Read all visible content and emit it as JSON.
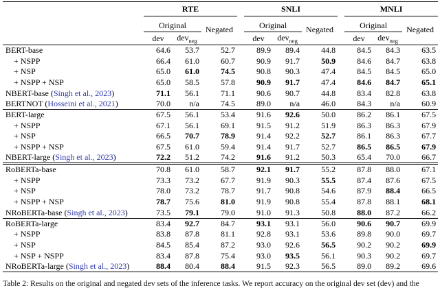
{
  "table": {
    "link_color": "#2d37aa",
    "col_groups": [
      {
        "name": "RTE"
      },
      {
        "name": "SNLI"
      },
      {
        "name": "MNLI"
      }
    ],
    "header": {
      "original": "Original",
      "negated": "Negated",
      "dev": "dev",
      "neg_sub": "neg"
    },
    "sections": [
      {
        "rows": [
          {
            "label": "BERT-base",
            "indent": false,
            "values": [
              "64.6",
              "53.7",
              "52.7",
              "89.9",
              "89.4",
              "44.8",
              "84.5",
              "84.3",
              "63.5"
            ],
            "bold": []
          },
          {
            "label": "+ NSPP",
            "indent": true,
            "values": [
              "66.4",
              "61.0",
              "60.7",
              "90.9",
              "91.7",
              "50.9",
              "84.6",
              "84.7",
              "63.8"
            ],
            "bold": [
              5
            ]
          },
          {
            "label": "+ NSP",
            "indent": true,
            "values": [
              "65.0",
              "61.0",
              "74.5",
              "90.8",
              "90.3",
              "47.4",
              "84.5",
              "84.5",
              "65.0"
            ],
            "bold": [
              1,
              2
            ]
          },
          {
            "label": "+ NSPP + NSP",
            "indent": true,
            "values": [
              "65.0",
              "58.5",
              "57.8",
              "90.9",
              "91.7",
              "47.4",
              "84.6",
              "84.7",
              "65.1"
            ],
            "bold": [
              3,
              4,
              6,
              7,
              8
            ]
          },
          {
            "label": "NBERT-base",
            "cite": "Singh et al., 2023",
            "indent": false,
            "values": [
              "71.1",
              "56.1",
              "71.1",
              "90.6",
              "90.7",
              "44.8",
              "83.4",
              "82.8",
              "63.8"
            ],
            "bold": [
              0
            ]
          },
          {
            "label": "BERTNOT",
            "cite": "Hosseini et al., 2021",
            "indent": false,
            "values": [
              "70.0",
              "n/a",
              "74.5",
              "89.0",
              "n/a",
              "46.0",
              "84.3",
              "n/a",
              "60.9"
            ],
            "bold": []
          }
        ]
      },
      {
        "rule": "single",
        "rows": [
          {
            "label": "BERT-large",
            "indent": false,
            "values": [
              "67.5",
              "56.1",
              "53.4",
              "91.6",
              "92.6",
              "50.0",
              "86.2",
              "86.1",
              "67.5"
            ],
            "bold": [
              4
            ]
          },
          {
            "label": "+ NSPP",
            "indent": true,
            "values": [
              "67.1",
              "56.1",
              "69.1",
              "91.5",
              "91.2",
              "51.9",
              "86.3",
              "86.3",
              "67.9"
            ],
            "bold": []
          },
          {
            "label": "+ NSP",
            "indent": true,
            "values": [
              "66.5",
              "70.7",
              "78.9",
              "91.4",
              "92.2",
              "52.7",
              "86.1",
              "86.3",
              "67.7"
            ],
            "bold": [
              1,
              2,
              5
            ]
          },
          {
            "label": "+ NSPP + NSP",
            "indent": true,
            "values": [
              "67.5",
              "61.0",
              "59.4",
              "91.4",
              "91.7",
              "52.7",
              "86.5",
              "86.5",
              "67.9"
            ],
            "bold": [
              6,
              7,
              8
            ]
          },
          {
            "label": "NBERT-large",
            "cite": "Singh et al., 2023",
            "indent": false,
            "values": [
              "72.2",
              "51.2",
              "74.2",
              "91.6",
              "91.2",
              "50.3",
              "65.4",
              "70.0",
              "66.7"
            ],
            "bold": [
              0,
              3
            ]
          }
        ]
      },
      {
        "rule": "double",
        "rows": [
          {
            "label": "RoBERTa-base",
            "indent": false,
            "values": [
              "70.8",
              "61.0",
              "58.7",
              "92.1",
              "91.7",
              "55.2",
              "87.8",
              "88.0",
              "67.1"
            ],
            "bold": [
              3,
              4
            ]
          },
          {
            "label": "+ NSPP",
            "indent": true,
            "values": [
              "73.3",
              "73.2",
              "67.7",
              "91.9",
              "90.3",
              "55.5",
              "87.4",
              "87.6",
              "67.5"
            ],
            "bold": [
              5
            ]
          },
          {
            "label": "+ NSP",
            "indent": true,
            "values": [
              "78.0",
              "73.2",
              "78.7",
              "91.7",
              "90.8",
              "54.6",
              "87.9",
              "88.4",
              "66.5"
            ],
            "bold": [
              7
            ]
          },
          {
            "label": "+ NSPP + NSP",
            "indent": true,
            "values": [
              "78.7",
              "75.6",
              "81.0",
              "91.9",
              "90.8",
              "55.4",
              "87.8",
              "88.1",
              "68.1"
            ],
            "bold": [
              0,
              2,
              8
            ]
          },
          {
            "label": "NRoBERTa-base",
            "cite": "Singh et al., 2023",
            "indent": false,
            "values": [
              "73.5",
              "79.1",
              "79.0",
              "91.0",
              "91.3",
              "50.8",
              "88.0",
              "87.2",
              "66.2"
            ],
            "bold": [
              1,
              6
            ]
          }
        ]
      },
      {
        "rule": "single",
        "rows": [
          {
            "label": "RoBERTa-large",
            "indent": false,
            "values": [
              "83.4",
              "92.7",
              "84.7",
              "93.1",
              "93.1",
              "56.0",
              "90.6",
              "90.7",
              "69.9"
            ],
            "bold": [
              1,
              3,
              6,
              7
            ]
          },
          {
            "label": "+ NSPP",
            "indent": true,
            "values": [
              "83.8",
              "87.8",
              "81.1",
              "92.8",
              "93.1",
              "53.6",
              "89.8",
              "90.0",
              "69.7"
            ],
            "bold": []
          },
          {
            "label": "+ NSP",
            "indent": true,
            "values": [
              "84.5",
              "85.4",
              "87.2",
              "93.0",
              "92.6",
              "56.5",
              "90.2",
              "90.2",
              "69.9"
            ],
            "bold": [
              5,
              8
            ]
          },
          {
            "label": "+ NSP + NSPP",
            "indent": true,
            "values": [
              "83.4",
              "87.8",
              "75.4",
              "93.0",
              "93.5",
              "56.1",
              "90.3",
              "90.2",
              "69.7"
            ],
            "bold": [
              4
            ]
          },
          {
            "label": "NRoBERTa-large",
            "cite": "Singh et al., 2023",
            "indent": false,
            "values": [
              "88.4",
              "80.4",
              "88.4",
              "91.5",
              "92.3",
              "56.5",
              "89.0",
              "89.2",
              "69.6"
            ],
            "bold": [
              0,
              2
            ]
          }
        ]
      }
    ],
    "caption": "Table 2: Results on the original and negated dev sets of the inference tasks. We report accuracy on the original dev set (dev) and the"
  }
}
